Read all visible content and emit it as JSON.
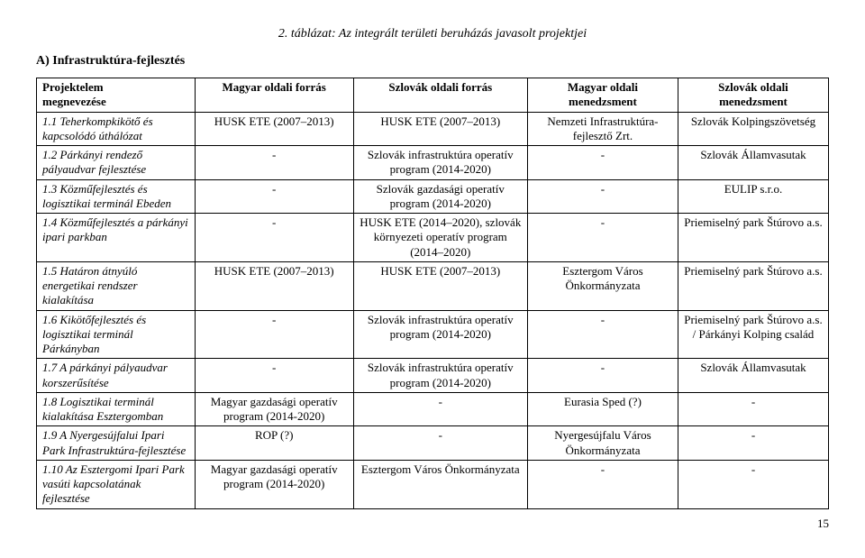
{
  "caption": "2. táblázat: Az integrált területi beruházás javasolt projektjei",
  "section": "A) Infrastruktúra-fejlesztés",
  "headers": {
    "c1a": "Projektelem",
    "c1b": "megnevezése",
    "c2": "Magyar oldali forrás",
    "c3": "Szlovák oldali forrás",
    "c4a": "Magyar oldali",
    "c4b": "menedzsment",
    "c5a": "Szlovák oldali",
    "c5b": "menedzsment"
  },
  "rows": [
    {
      "name": "1.1 Teherkompkikötő és kapcsolódó úthálózat",
      "hu_src": "HUSK ETE (2007–2013)",
      "sk_src": "HUSK ETE (2007–2013)",
      "hu_mgmt": "Nemzeti Infrastruktúra-fejlesztő Zrt.",
      "sk_mgmt": "Szlovák Kolpingszövetség"
    },
    {
      "name": "1.2 Párkányi rendező pályaudvar fejlesztése",
      "hu_src": "-",
      "sk_src": "Szlovák infrastruktúra operatív program (2014-2020)",
      "hu_mgmt": "-",
      "sk_mgmt": "Szlovák Államvasutak"
    },
    {
      "name": "1.3 Közműfejlesztés és logisztikai terminál Ebeden",
      "hu_src": "-",
      "sk_src": "Szlovák gazdasági operatív program (2014-2020)",
      "hu_mgmt": "-",
      "sk_mgmt": "EULIP s.r.o."
    },
    {
      "name": "1.4 Közműfejlesztés a párkányi ipari parkban",
      "hu_src": "-",
      "sk_src": "HUSK ETE (2014–2020), szlovák környezeti operatív program (2014–2020)",
      "hu_mgmt": "-",
      "sk_mgmt": "Priemiselný park Štúrovo a.s."
    },
    {
      "name": "1.5 Határon átnyúló energetikai rendszer kialakítása",
      "hu_src": "HUSK ETE (2007–2013)",
      "sk_src": "HUSK ETE (2007–2013)",
      "hu_mgmt": "Esztergom Város Önkormányzata",
      "sk_mgmt": "Priemiselný park Štúrovo a.s."
    },
    {
      "name": "1.6 Kikötőfejlesztés és logisztikai terminál Párkányban",
      "hu_src": "-",
      "sk_src": "Szlovák infrastruktúra operatív program (2014-2020)",
      "hu_mgmt": "-",
      "sk_mgmt": "Priemiselný park Štúrovo a.s. / Párkányi Kolping család"
    },
    {
      "name": "1.7 A párkányi pályaudvar korszerűsítése",
      "hu_src": "-",
      "sk_src": "Szlovák infrastruktúra operatív program (2014-2020)",
      "hu_mgmt": "-",
      "sk_mgmt": "Szlovák Államvasutak"
    },
    {
      "name": "1.8 Logisztikai terminál kialakítása Esztergomban",
      "hu_src": "Magyar gazdasági operatív program (2014-2020)",
      "sk_src": "-",
      "hu_mgmt": "Eurasia Sped (?)",
      "sk_mgmt": "-"
    },
    {
      "name": "1.9 A Nyergesújfalui Ipari Park Infrastruktúra-fejlesztése",
      "hu_src": "ROP (?)",
      "sk_src": "-",
      "hu_mgmt": "Nyergesújfalu Város Önkormányzata",
      "sk_mgmt": "-"
    },
    {
      "name": "1.10 Az Esztergomi Ipari Park vasúti kapcsolatának fejlesztése",
      "hu_src": "Magyar gazdasági operatív program (2014-2020)",
      "sk_src": "Esztergom Város Önkormányzata",
      "hu_mgmt": "-",
      "sk_mgmt": "-"
    }
  ],
  "page": "15"
}
